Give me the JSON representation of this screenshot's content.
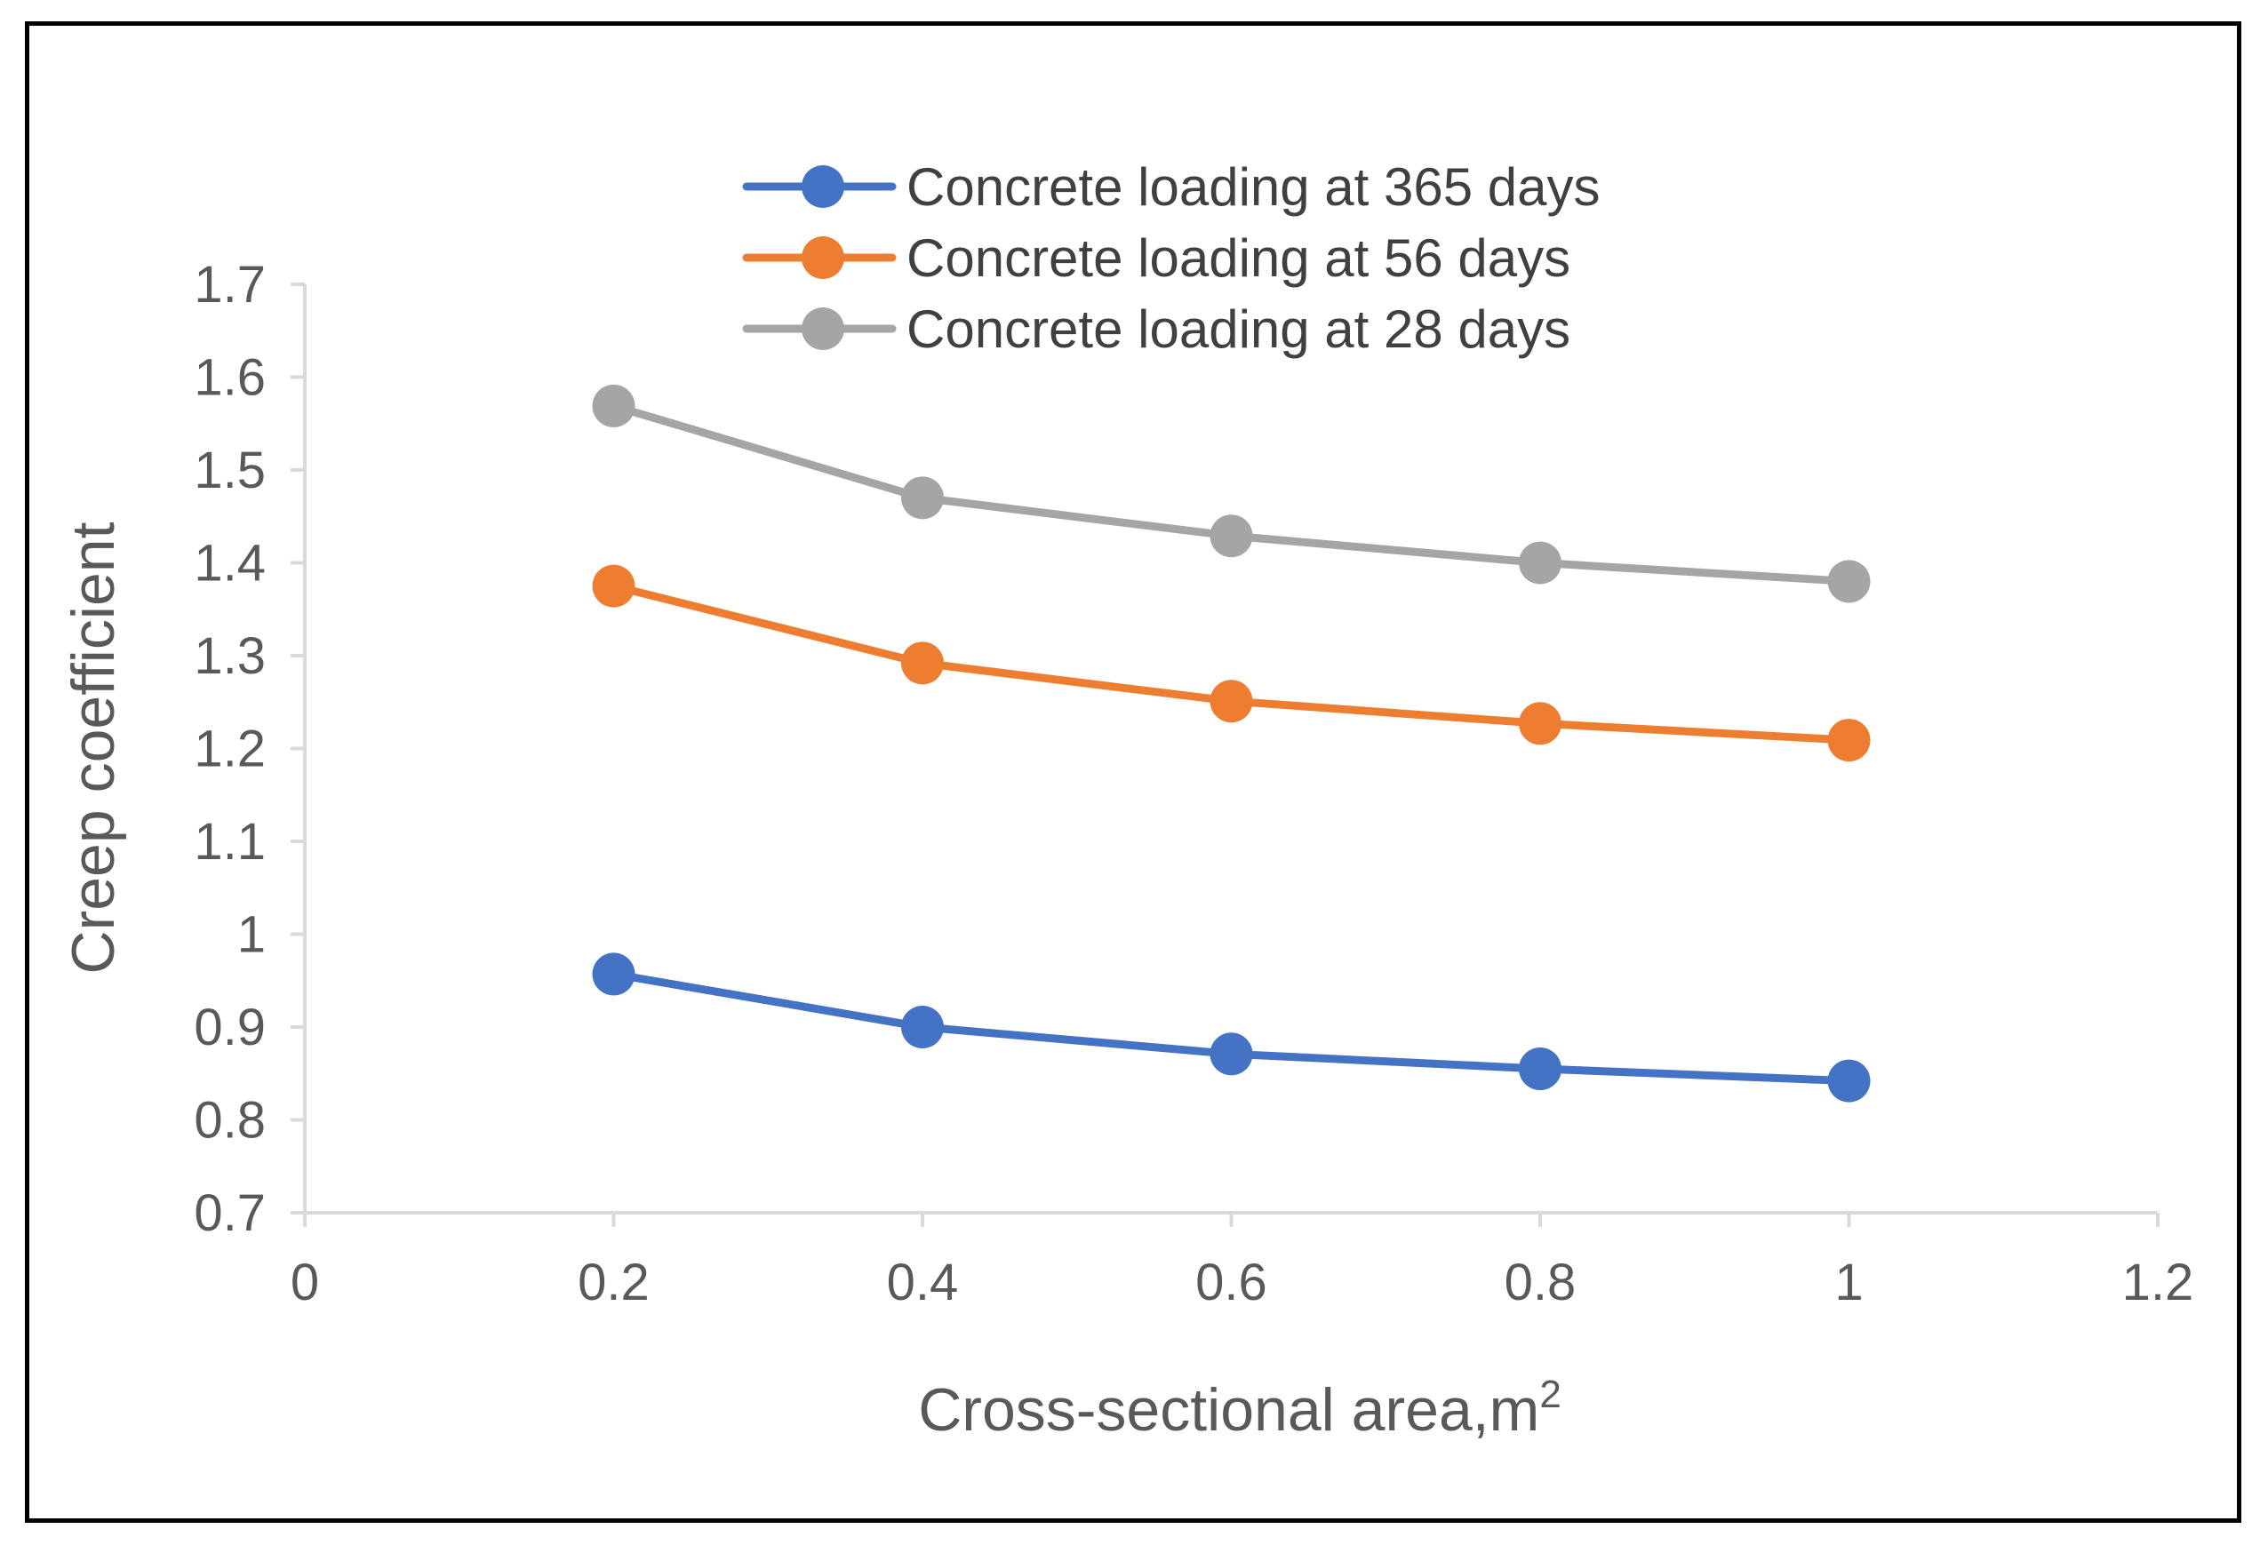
{
  "chart_data": {
    "type": "line",
    "title": "",
    "xlabel": "Cross-sectional area,m",
    "xlabel_superscript": "2",
    "ylabel": "Creep coefficient",
    "xlim": [
      0,
      1.2
    ],
    "ylim": [
      0.7,
      1.7
    ],
    "x_ticks": [
      "0",
      "0.2",
      "0.4",
      "0.6",
      "0.8",
      "1",
      "1.2"
    ],
    "y_ticks": [
      "0.7",
      "0.8",
      "0.9",
      "1",
      "1.1",
      "1.2",
      "1.3",
      "1.4",
      "1.5",
      "1.6",
      "1.7"
    ],
    "x_tick_values": [
      0,
      0.2,
      0.4,
      0.6,
      0.8,
      1.0,
      1.2
    ],
    "y_tick_values": [
      0.7,
      0.8,
      0.9,
      1.0,
      1.1,
      1.2,
      1.3,
      1.4,
      1.5,
      1.6,
      1.7
    ],
    "grid": false,
    "legend_position": "top-center",
    "x": [
      0.2,
      0.4,
      0.6,
      0.8,
      1.0
    ],
    "series": [
      {
        "name": "Concrete loading at 365 days",
        "color": "#4472C4",
        "values": [
          0.957,
          0.9,
          0.871,
          0.855,
          0.842
        ]
      },
      {
        "name": "Concrete loading at 56 days",
        "color": "#ED7D31",
        "values": [
          1.375,
          1.292,
          1.251,
          1.227,
          1.209
        ]
      },
      {
        "name": "Concrete loading at 28 days",
        "color": "#A5A5A5",
        "values": [
          1.569,
          1.47,
          1.429,
          1.4,
          1.38
        ]
      }
    ],
    "axis_color": "#D9D9D9"
  }
}
